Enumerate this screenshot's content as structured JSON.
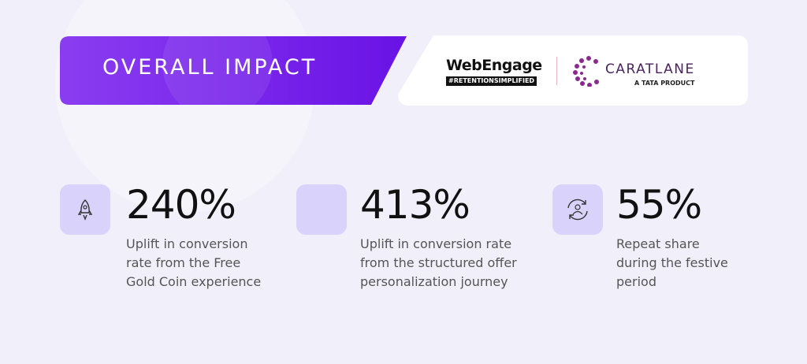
{
  "header": {
    "title": "OVERALL IMPACT"
  },
  "logos": {
    "webengage": {
      "name": "WebEngage",
      "tagline": "#RETENTIONSIMPLIFIED"
    },
    "caratlane": {
      "name": "CARATLANE",
      "subtitle": "A TATA PRODUCT"
    }
  },
  "stats": [
    {
      "value": "240%",
      "description": [
        "Uplift in conversion",
        "rate from the Free",
        "Gold Coin experience"
      ]
    },
    {
      "value": "413%",
      "description": [
        "Uplift in conversion rate",
        "from the structured offer",
        "personalization journey"
      ]
    },
    {
      "value": "55%",
      "description": [
        "Repeat share",
        "during the festive",
        "period"
      ]
    }
  ]
}
